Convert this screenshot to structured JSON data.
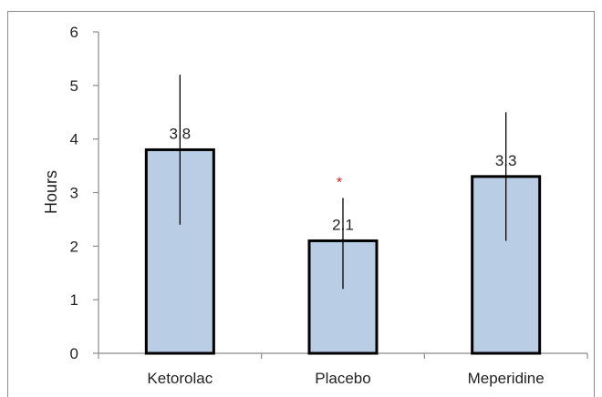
{
  "chart_data": {
    "type": "bar",
    "categories": [
      "Ketorolac",
      "Placebo",
      "Meperidine"
    ],
    "values": [
      3.8,
      2.1,
      3.3
    ],
    "data_labels": [
      "3.8",
      "2.1",
      "3.3"
    ],
    "error_bars": [
      {
        "low": 2.4,
        "high": 5.2
      },
      {
        "low": 1.2,
        "high": 2.9
      },
      {
        "low": 2.1,
        "high": 4.5
      }
    ],
    "annotations": [
      {
        "category": "Placebo",
        "text": "*",
        "color": "#e01010"
      }
    ],
    "ylabel": "Hours",
    "ylim": [
      0,
      6
    ],
    "yticks": [
      0,
      1,
      2,
      3,
      4,
      5,
      6
    ],
    "grid": false,
    "bar_color": "#b9cde4",
    "bar_edge_color": "#000000"
  }
}
